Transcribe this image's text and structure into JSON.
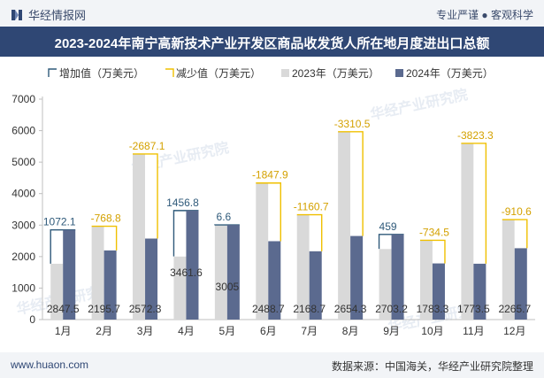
{
  "header": {
    "brand": "华经情报网",
    "tagline": "专业严谨 ● 客观科学",
    "title": "2023-2024年南宁高新技术产业开发区商品收发货人所在地月度进出口总额"
  },
  "footer": {
    "site": "www.huaon.com",
    "source": "数据来源：中国海关，华经产业研究院整理"
  },
  "watermark": "华经产业研究院",
  "colors": {
    "increase": "#2f5a7a",
    "decrease": "#f0c000",
    "y2023": "#d9d9d9",
    "y2024": "#5b6a8f",
    "title_bg": "#2f4774"
  },
  "chart_data": {
    "type": "bar",
    "categories": [
      "1月",
      "2月",
      "3月",
      "4月",
      "5月",
      "6月",
      "7月",
      "8月",
      "9月",
      "10月",
      "11月",
      "12月"
    ],
    "series": [
      {
        "name": "2023年（万美元）",
        "values": [
          1775.4,
          2964.5,
          5259.4,
          2004.8,
          2998.4,
          4336.6,
          3329.4,
          5964.8,
          2244.2,
          2517.8,
          5596.8,
          3176.3
        ]
      },
      {
        "name": "2024年（万美元）",
        "values": [
          2847.5,
          2195.7,
          2572.3,
          3461.6,
          3005,
          2488.7,
          2168.7,
          2654.3,
          2703.2,
          1783.3,
          1773.5,
          2265.7
        ]
      },
      {
        "name": "增加值（万美元）",
        "values": [
          1072.1,
          null,
          null,
          1456.8,
          6.6,
          null,
          null,
          null,
          459,
          null,
          null,
          null
        ]
      },
      {
        "name": "减少值（万美元）",
        "values": [
          null,
          -768.8,
          -2687.1,
          null,
          null,
          -1847.9,
          -1160.7,
          -3310.5,
          null,
          -734.5,
          -3823.3,
          -910.6
        ]
      }
    ],
    "ylim": [
      0,
      7000
    ],
    "yticks": [
      0,
      1000,
      2000,
      3000,
      4000,
      5000,
      6000,
      7000
    ],
    "grid": false,
    "legend": "top-left"
  }
}
